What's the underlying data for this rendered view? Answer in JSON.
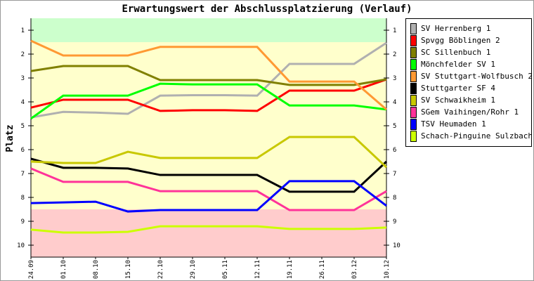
{
  "chart_data": {
    "type": "line",
    "title": "Erwartungswert der Abschlussplatzierung (Verlauf)",
    "xlabel": "",
    "ylabel": "Platz",
    "x": [
      "24.09",
      "01.10",
      "08.10",
      "15.10",
      "22.10",
      "29.10",
      "05.11",
      "12.11",
      "19.11",
      "26.11",
      "03.12",
      "10.12"
    ],
    "yticks": [
      "1",
      "2",
      "3",
      "4",
      "5",
      "6",
      "7",
      "8",
      "9",
      "10"
    ],
    "ylim": [
      10.5,
      0.5
    ],
    "zones": [
      {
        "from": 0.5,
        "to": 1.5,
        "color": "#ccffcc"
      },
      {
        "from": 1.5,
        "to": 8.5,
        "color": "#ffffcc"
      },
      {
        "from": 8.5,
        "to": 10.5,
        "color": "#ffcccc"
      }
    ],
    "legend_position": "right",
    "series": [
      {
        "name": "SV Herrenberg 1",
        "color": "#b0b0b0",
        "values": [
          4.65,
          4.42,
          4.45,
          4.5,
          3.74,
          3.72,
          3.72,
          3.74,
          2.41,
          2.41,
          2.41,
          1.53
        ]
      },
      {
        "name": "Spvgg Böblingen 2",
        "color": "#ff0000",
        "values": [
          4.24,
          3.91,
          3.91,
          3.91,
          4.38,
          4.35,
          4.35,
          4.38,
          3.53,
          3.53,
          3.53,
          3.06
        ]
      },
      {
        "name": "SC Sillenbuch 1",
        "color": "#808000",
        "values": [
          2.71,
          2.5,
          2.5,
          2.5,
          3.09,
          3.09,
          3.09,
          3.09,
          3.29,
          3.29,
          3.29,
          3.06
        ]
      },
      {
        "name": "Mönchfelder SV 1",
        "color": "#00ff00",
        "values": [
          4.7,
          3.74,
          3.74,
          3.74,
          3.24,
          3.27,
          3.27,
          3.27,
          4.15,
          4.15,
          4.15,
          4.32
        ]
      },
      {
        "name": "SV Stuttgart-Wolfbusch 2",
        "color": "#ff9933",
        "values": [
          1.44,
          2.06,
          2.06,
          2.06,
          1.7,
          1.7,
          1.7,
          1.7,
          3.15,
          3.15,
          3.15,
          4.32
        ]
      },
      {
        "name": "Stuttgarter SF 4",
        "color": "#000000",
        "values": [
          6.38,
          6.76,
          6.76,
          6.79,
          7.06,
          7.06,
          7.06,
          7.06,
          7.76,
          7.76,
          7.76,
          6.5
        ]
      },
      {
        "name": "SV Schwaikheim 1",
        "color": "#c8c800",
        "values": [
          6.5,
          6.56,
          6.56,
          6.09,
          6.35,
          6.35,
          6.35,
          6.35,
          5.47,
          5.47,
          5.47,
          6.74
        ]
      },
      {
        "name": "SGem Vaihingen/Rohr 1",
        "color": "#ff3399",
        "values": [
          6.79,
          7.35,
          7.35,
          7.35,
          7.74,
          7.74,
          7.74,
          7.74,
          8.53,
          8.53,
          8.53,
          7.74
        ]
      },
      {
        "name": "TSV Heumaden 1",
        "color": "#0000ff",
        "values": [
          8.24,
          8.21,
          8.18,
          8.59,
          8.53,
          8.53,
          8.53,
          8.53,
          7.32,
          7.32,
          7.32,
          8.35
        ]
      },
      {
        "name": "Schach-Pinguine Sulzbach 1",
        "color": "#ccff00",
        "values": [
          9.35,
          9.47,
          9.47,
          9.44,
          9.21,
          9.21,
          9.21,
          9.21,
          9.32,
          9.32,
          9.32,
          9.26
        ]
      }
    ]
  }
}
